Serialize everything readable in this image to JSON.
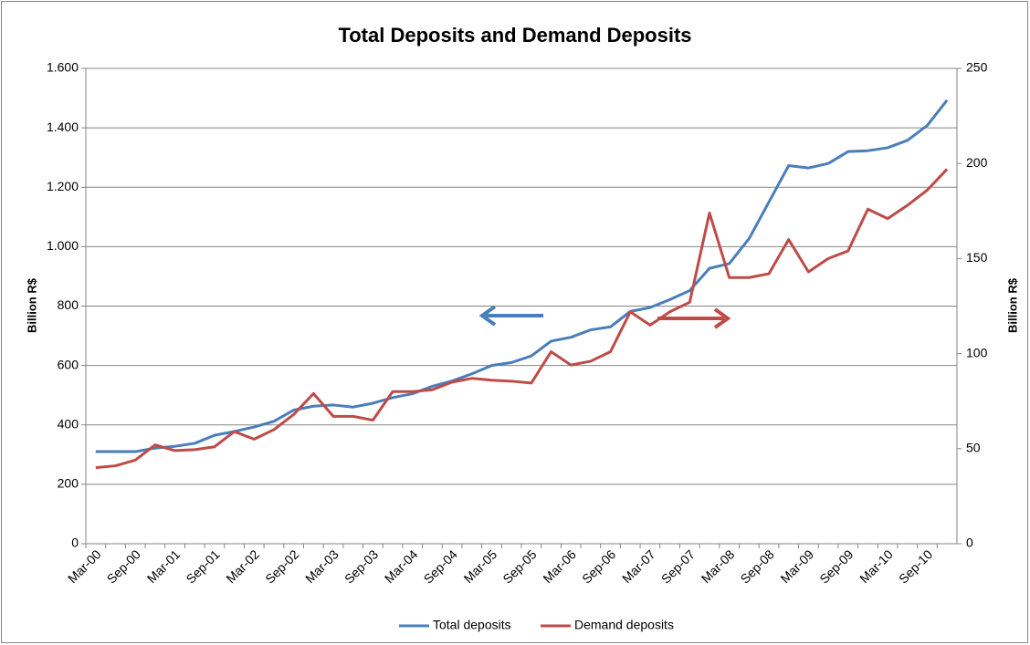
{
  "chart_data": {
    "type": "line",
    "title": "Total Deposits and Demand Deposits",
    "ylabel": "Billion R$",
    "y2label": "Billion R$",
    "categories": [
      "Mar-00",
      null,
      "Sep-00",
      null,
      "Mar-01",
      null,
      "Sep-01",
      null,
      "Mar-02",
      null,
      "Sep-02",
      null,
      "Mar-03",
      null,
      "Sep-03",
      null,
      "Mar-04",
      null,
      "Sep-04",
      null,
      "Mar-05",
      null,
      "Sep-05",
      null,
      "Mar-06",
      null,
      "Sep-06",
      null,
      "Mar-07",
      null,
      "Sep-07",
      null,
      "Mar-08",
      null,
      "Sep-08",
      null,
      "Mar-09",
      null,
      "Sep-09",
      null,
      "Mar-10",
      null,
      "Sep-10",
      null
    ],
    "series": [
      {
        "name": "Total deposits",
        "color": "#4a7ebb",
        "values": [
          310,
          310,
          310,
          322,
          328,
          338,
          365,
          378,
          393,
          412,
          450,
          463,
          467,
          460,
          473,
          492,
          505,
          530,
          548,
          572,
          600,
          610,
          632,
          682,
          695,
          720,
          730,
          782,
          795,
          822,
          852,
          927,
          943,
          1027,
          1150,
          1273,
          1265,
          1280,
          1320,
          1323,
          1333,
          1358,
          1408,
          1493
        ]
      },
      {
        "name": "Demand deposits",
        "color": "#be4b48",
        "axis": "y2",
        "values": [
          40,
          41,
          44,
          52,
          49,
          49.5,
          51,
          59,
          55,
          60,
          68,
          79,
          67,
          67,
          65,
          80,
          80,
          81,
          85,
          87,
          86,
          85.5,
          84.5,
          101,
          94,
          96,
          101,
          122,
          115,
          122,
          127,
          174,
          140,
          140,
          142,
          160,
          143,
          150,
          154,
          176,
          171,
          178,
          186,
          197
        ]
      }
    ],
    "ylim": [
      0,
      1600
    ],
    "yticks": [
      0,
      200,
      400,
      600,
      800,
      {
        "value": 1000,
        "label": "1.000"
      },
      {
        "value": 1200,
        "label": "1.200"
      },
      {
        "value": 1400,
        "label": "1.400"
      },
      {
        "value": 1600,
        "label": "1.600"
      }
    ],
    "y2lim": [
      0,
      250
    ],
    "y2ticks": [
      0,
      50,
      100,
      150,
      200,
      250
    ],
    "grid": true,
    "legend": "bottom"
  }
}
